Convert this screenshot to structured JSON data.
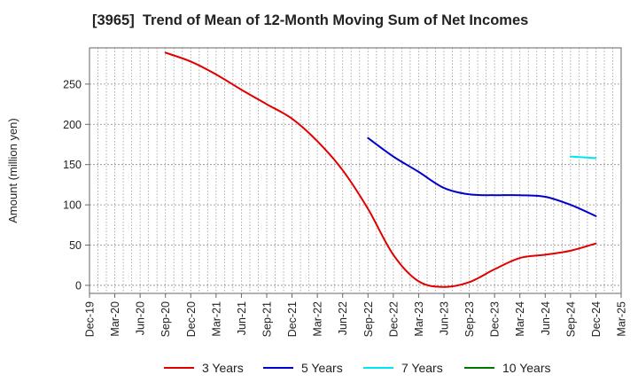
{
  "chart_data": {
    "type": "line",
    "title": "[3965]  Trend of Mean of 12-Month Moving Sum of Net Incomes",
    "xlabel": "",
    "ylabel": "Amount (million yen)",
    "ylim": [
      -10,
      295
    ],
    "yticks": [
      0,
      50,
      100,
      150,
      200,
      250
    ],
    "grid": true,
    "legend_position": "bottom",
    "x_tick_labels": [
      "Dec-19",
      "Mar-20",
      "Jun-20",
      "Sep-20",
      "Dec-20",
      "Mar-21",
      "Jun-21",
      "Sep-21",
      "Dec-21",
      "Mar-22",
      "Jun-22",
      "Sep-22",
      "Dec-22",
      "Mar-23",
      "Jun-23",
      "Sep-23",
      "Dec-23",
      "Mar-24",
      "Jun-24",
      "Sep-24",
      "Dec-24",
      "Mar-25"
    ],
    "series": [
      {
        "name": "3 Years",
        "color": "#e00000",
        "x": [
          "Sep-20",
          "Dec-20",
          "Mar-21",
          "Jun-21",
          "Sep-21",
          "Dec-21",
          "Mar-22",
          "Jun-22",
          "Sep-22",
          "Dec-22",
          "Mar-23",
          "Jun-23",
          "Sep-23",
          "Dec-23",
          "Mar-24",
          "Jun-24",
          "Sep-24",
          "Dec-24"
        ],
        "values": [
          289,
          278,
          262,
          243,
          225,
          207,
          179,
          143,
          95,
          38,
          5,
          -2,
          4,
          20,
          34,
          38,
          43,
          52
        ]
      },
      {
        "name": "5 Years",
        "color": "#0000cc",
        "x": [
          "Sep-22",
          "Dec-22",
          "Mar-23",
          "Jun-23",
          "Sep-23",
          "Dec-23",
          "Mar-24",
          "Jun-24",
          "Sep-24",
          "Dec-24"
        ],
        "values": [
          183,
          160,
          141,
          121,
          113,
          112,
          112,
          110,
          100,
          86
        ]
      },
      {
        "name": "7 Years",
        "color": "#00e5ee",
        "x": [
          "Sep-24",
          "Dec-24"
        ],
        "values": [
          160,
          158
        ]
      },
      {
        "name": "10 Years",
        "color": "#007700",
        "x": [],
        "values": []
      }
    ]
  }
}
